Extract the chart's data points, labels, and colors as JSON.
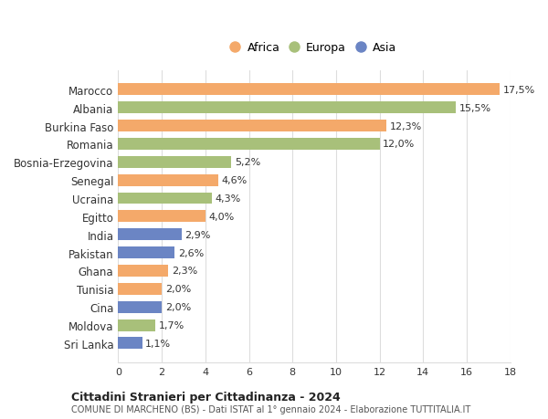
{
  "countries": [
    "Marocco",
    "Albania",
    "Burkina Faso",
    "Romania",
    "Bosnia-Erzegovina",
    "Senegal",
    "Ucraina",
    "Egitto",
    "India",
    "Pakistan",
    "Ghana",
    "Tunisia",
    "Cina",
    "Moldova",
    "Sri Lanka"
  ],
  "values": [
    17.5,
    15.5,
    12.3,
    12.0,
    5.2,
    4.6,
    4.3,
    4.0,
    2.9,
    2.6,
    2.3,
    2.0,
    2.0,
    1.7,
    1.1
  ],
  "labels": [
    "17,5%",
    "15,5%",
    "12,3%",
    "12,0%",
    "5,2%",
    "4,6%",
    "4,3%",
    "4,0%",
    "2,9%",
    "2,6%",
    "2,3%",
    "2,0%",
    "2,0%",
    "1,7%",
    "1,1%"
  ],
  "continents": [
    "Africa",
    "Europa",
    "Africa",
    "Europa",
    "Europa",
    "Africa",
    "Europa",
    "Africa",
    "Asia",
    "Asia",
    "Africa",
    "Africa",
    "Asia",
    "Europa",
    "Asia"
  ],
  "colors": {
    "Africa": "#F4A96A",
    "Europa": "#A8C07A",
    "Asia": "#6B85C4"
  },
  "legend_order": [
    "Africa",
    "Europa",
    "Asia"
  ],
  "title": "Cittadini Stranieri per Cittadinanza - 2024",
  "subtitle": "COMUNE DI MARCHENO (BS) - Dati ISTAT al 1° gennaio 2024 - Elaborazione TUTTITALIA.IT",
  "xlim": [
    0,
    18
  ],
  "xticks": [
    0,
    2,
    4,
    6,
    8,
    10,
    12,
    14,
    16,
    18
  ],
  "bg_color": "#ffffff",
  "grid_color": "#dddddd",
  "bar_height": 0.65
}
